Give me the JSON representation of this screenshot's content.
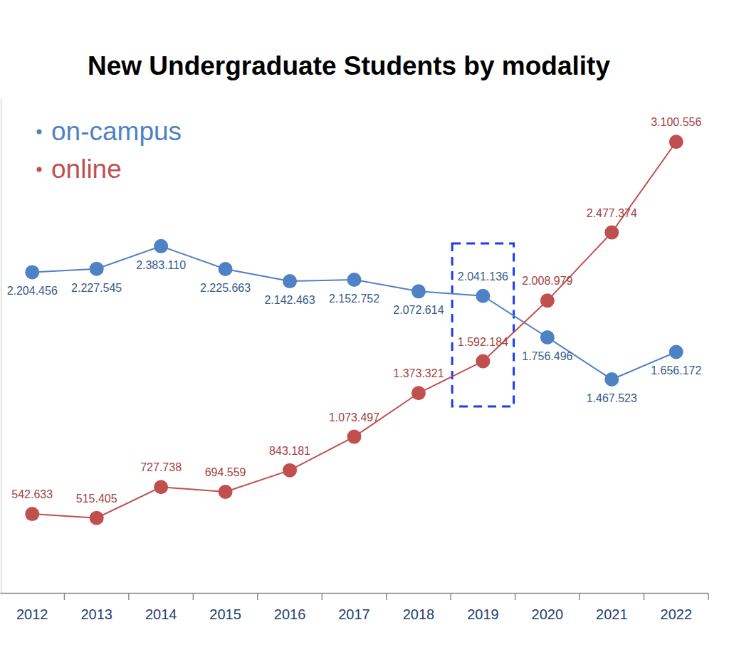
{
  "chart_data": {
    "type": "line",
    "title": "New Undergraduate Students by modality",
    "categories": [
      "2012",
      "2013",
      "2014",
      "2015",
      "2016",
      "2017",
      "2018",
      "2019",
      "2020",
      "2021",
      "2022"
    ],
    "series": [
      {
        "name": "on-campus",
        "color": "#4f81c5",
        "marker": "circle",
        "line_style": "solid",
        "values": [
          2204456,
          2227545,
          2383110,
          2225663,
          2142463,
          2152752,
          2072614,
          2041136,
          1756496,
          1467523,
          1656172
        ],
        "value_labels": [
          "2.204.456",
          "2.227.545",
          "2.383.110",
          "2.225.663",
          "2.142.463",
          "2.152.752",
          "2.072.614",
          "2.041.136",
          "1.756.496",
          "1.467.523",
          "1.656.172"
        ]
      },
      {
        "name": "online",
        "color": "#c0504d",
        "marker": "circle",
        "line_style": "solid",
        "values": [
          542633,
          515405,
          727738,
          694559,
          843181,
          1073497,
          1373321,
          1592184,
          2008979,
          2477374,
          3100556
        ],
        "value_labels": [
          "542.633",
          "515.405",
          "727.738",
          "694.559",
          "843.181",
          "1.073.497",
          "1.373.321",
          "1.592.184",
          "2.008.979",
          "2.477.374",
          "3.100.556"
        ]
      }
    ],
    "ylim": [
      0,
      3400000
    ],
    "tick_labels": "x",
    "data_labels": true,
    "legend": "top-left",
    "grid": false
  }
}
